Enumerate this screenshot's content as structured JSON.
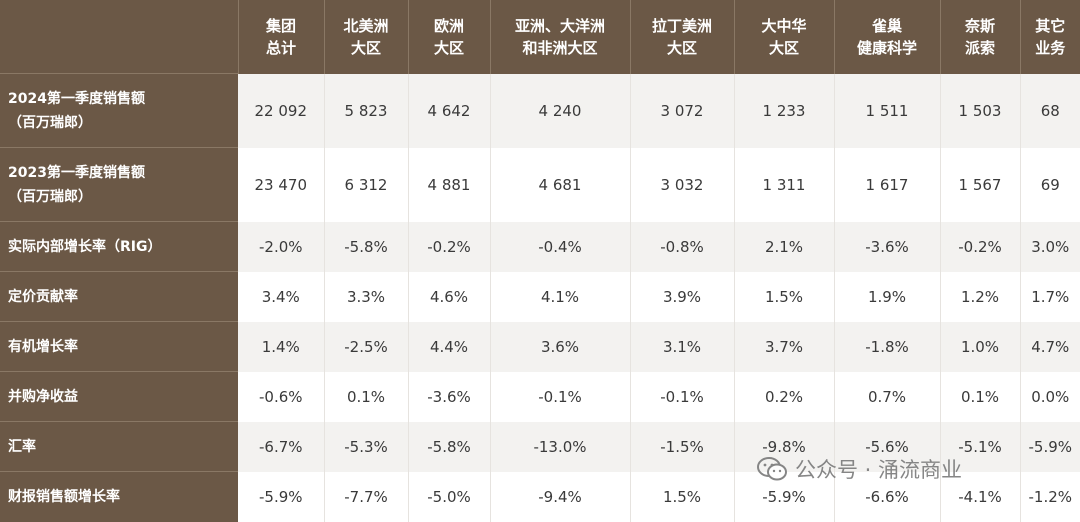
{
  "header": {
    "corner": "",
    "columns": [
      {
        "line1": "集团",
        "line2": "总计"
      },
      {
        "line1": "北美洲",
        "line2": "大区"
      },
      {
        "line1": "欧洲",
        "line2": "大区"
      },
      {
        "line1": "亚洲、大洋洲",
        "line2": "和非洲大区"
      },
      {
        "line1": "拉丁美洲",
        "line2": "大区"
      },
      {
        "line1": "大中华",
        "line2": "大区"
      },
      {
        "line1": "雀巢",
        "line2": "健康科学"
      },
      {
        "line1": "奈斯",
        "line2": "派索"
      },
      {
        "line1": "其它",
        "line2": "业务"
      }
    ]
  },
  "rows": [
    {
      "label1": "2024第一季度销售额",
      "label2": "（百万瑞郎）",
      "cells": [
        "22 092",
        "5 823",
        "4 642",
        "4 240",
        "3 072",
        "1 233",
        "1 511",
        "1 503",
        "68"
      ]
    },
    {
      "label1": "2023第一季度销售额",
      "label2": "（百万瑞郎）",
      "cells": [
        "23 470",
        "6 312",
        "4 881",
        "4 681",
        "3 032",
        "1 311",
        "1 617",
        "1 567",
        "69"
      ]
    },
    {
      "label1": "实际内部增长率（RIG）",
      "label2": "",
      "cells": [
        "-2.0%",
        "-5.8%",
        "-0.2%",
        "-0.4%",
        "-0.8%",
        "2.1%",
        "-3.6%",
        "-0.2%",
        "3.0%"
      ]
    },
    {
      "label1": "定价贡献率",
      "label2": "",
      "cells": [
        "3.4%",
        "3.3%",
        "4.6%",
        "4.1%",
        "3.9%",
        "1.5%",
        "1.9%",
        "1.2%",
        "1.7%"
      ]
    },
    {
      "label1": "有机增长率",
      "label2": "",
      "cells": [
        "1.4%",
        "-2.5%",
        "4.4%",
        "3.6%",
        "3.1%",
        "3.7%",
        "-1.8%",
        "1.0%",
        "4.7%"
      ]
    },
    {
      "label1": "并购净收益",
      "label2": "",
      "cells": [
        "-0.6%",
        "0.1%",
        "-3.6%",
        "-0.1%",
        "-0.1%",
        "0.2%",
        "0.7%",
        "0.1%",
        "0.0%"
      ]
    },
    {
      "label1": "汇率",
      "label2": "",
      "cells": [
        "-6.7%",
        "-5.3%",
        "-5.8%",
        "-13.0%",
        "-1.5%",
        "-9.8%",
        "-5.6%",
        "-5.1%",
        "-5.9%"
      ]
    },
    {
      "label1": "财报销售额增长率",
      "label2": "",
      "cells": [
        "-5.9%",
        "-7.7%",
        "-5.0%",
        "-9.4%",
        "1.5%",
        "-5.9%",
        "-6.6%",
        "-4.1%",
        "-1.2%"
      ]
    }
  ],
  "watermark": {
    "text": "公众号 · 涌流商业",
    "icon": "wechat-icon"
  },
  "colors": {
    "header_bg": "#6b5846",
    "stripe": "#f3f2f0",
    "text": "#3a3a3a"
  }
}
